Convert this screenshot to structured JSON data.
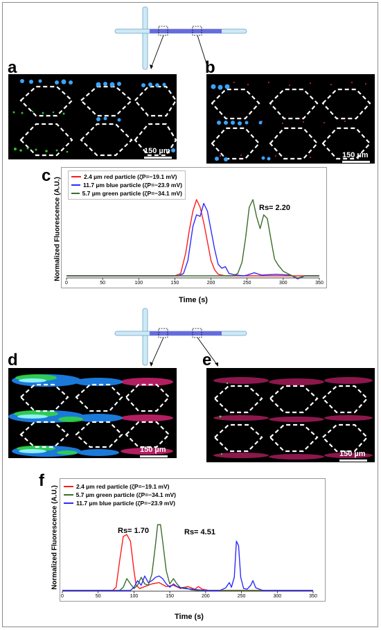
{
  "panels": {
    "a": "a",
    "b": "b",
    "c": "c",
    "d": "d",
    "e": "e",
    "f": "f"
  },
  "scale_bar_label": "150 µm",
  "colors": {
    "red": "#ff1a1a",
    "blue": "#2b2bff",
    "green": "#3c6b2a",
    "channel": "#6a6adf",
    "channel_light": "#bfe3f2"
  },
  "chart_data": [
    {
      "id": "c",
      "type": "line",
      "xlabel": "Time (s)",
      "ylabel": "Normalized Fluorescence (A.U.)",
      "xlim": [
        0,
        350
      ],
      "xticks": [
        "0",
        "50",
        "100",
        "150",
        "200",
        "250",
        "300",
        "350"
      ],
      "annotation": "Rs= 2.20",
      "series": [
        {
          "name": "2.4 µm red particle  (ζP=−19.1 mV)",
          "color": "#ff1a1a",
          "x": [
            0,
            150,
            158,
            165,
            170,
            175,
            180,
            185,
            190,
            195,
            200,
            205,
            210,
            220,
            250,
            350
          ],
          "y": [
            0,
            0,
            0.03,
            0.3,
            0.6,
            0.85,
            1.0,
            0.9,
            0.7,
            0.45,
            0.2,
            0.08,
            0.02,
            0,
            0,
            0
          ]
        },
        {
          "name": "11.7 µm blue particle  (ζP=−23.9 mV)",
          "color": "#2b2bff",
          "x": [
            0,
            155,
            162,
            168,
            175,
            180,
            185,
            190,
            195,
            200,
            205,
            210,
            215,
            220,
            225,
            235,
            245,
            250,
            260,
            270,
            290,
            310,
            320,
            330,
            350
          ],
          "y": [
            0,
            0,
            0.03,
            0.2,
            0.65,
            0.8,
            0.78,
            0.95,
            0.85,
            0.6,
            0.35,
            0.15,
            0.1,
            0.12,
            0.03,
            0.01,
            0,
            0.01,
            0.04,
            0.01,
            0.02,
            0.01,
            -0.04,
            0,
            0
          ]
        },
        {
          "name": "5.7 µm green particle  (ζP=−34.1 mV)",
          "color": "#3c6b2a",
          "x": [
            0,
            230,
            237,
            243,
            248,
            253,
            258,
            263,
            268,
            273,
            278,
            283,
            288,
            293,
            300,
            308,
            315,
            320,
            330,
            350
          ],
          "y": [
            0,
            0,
            0.03,
            0.18,
            0.5,
            0.9,
            1.0,
            0.78,
            0.62,
            0.8,
            0.75,
            0.48,
            0.22,
            0.14,
            0.06,
            0.02,
            -0.01,
            -0.03,
            0,
            0
          ]
        }
      ]
    },
    {
      "id": "f",
      "type": "line",
      "xlabel": "Time (s)",
      "ylabel": "Normalized Fluorescence (A.U.)",
      "xlim": [
        0,
        350
      ],
      "xticks": [
        "0",
        "50",
        "100",
        "150",
        "200",
        "250",
        "300",
        "350"
      ],
      "annotations": [
        "Rs= 1.70",
        "Rs= 4.51"
      ],
      "series": [
        {
          "name": "2.4 µm red particle  (ζP=−19.1 mV)",
          "color": "#ff1a1a",
          "x": [
            0,
            70,
            75,
            80,
            85,
            90,
            95,
            100,
            103,
            108,
            115,
            125,
            135,
            145,
            155,
            165,
            175,
            185,
            190,
            195,
            205,
            230,
            350
          ],
          "y": [
            0,
            0,
            0.05,
            0.45,
            0.82,
            0.85,
            0.75,
            0.3,
            0.08,
            0.03,
            0.06,
            0.1,
            0.12,
            0.06,
            0.08,
            0.03,
            0.06,
            0.02,
            0.06,
            0.02,
            0,
            0,
            0
          ]
        },
        {
          "name": "5.7 µm green particle  (ζP=−34.1 mV)",
          "color": "#3c6b2a",
          "x": [
            0,
            80,
            85,
            90,
            95,
            100,
            105,
            110,
            115,
            120,
            125,
            130,
            133,
            137,
            140,
            145,
            150,
            155,
            160,
            165,
            170,
            180,
            190,
            350
          ],
          "y": [
            0,
            0,
            0.05,
            0.18,
            0.1,
            0.03,
            0.08,
            0.2,
            0.1,
            0.08,
            0.25,
            0.7,
            1.0,
            1.0,
            0.75,
            0.3,
            0.1,
            0.18,
            0.1,
            0.04,
            0.05,
            0.01,
            0,
            0
          ]
        },
        {
          "name": "11.7 µm blue particle  (ζP=−23.9 mV)",
          "color": "#2b2bff",
          "x": [
            0,
            95,
            100,
            105,
            110,
            115,
            120,
            125,
            130,
            135,
            140,
            145,
            150,
            155,
            160,
            170,
            180,
            190,
            200,
            220,
            228,
            233,
            236,
            240,
            243,
            246,
            249,
            253,
            258,
            263,
            266,
            270,
            280,
            350
          ],
          "y": [
            0,
            0,
            0.05,
            0.15,
            0.08,
            0.22,
            0.12,
            0.15,
            0.2,
            0.22,
            0.18,
            0.1,
            0.05,
            0.1,
            0.06,
            0.03,
            0.02,
            0.01,
            0,
            0,
            0.04,
            0.12,
            0.05,
            0.2,
            0.75,
            0.68,
            0.2,
            0.03,
            0.02,
            0.08,
            0.15,
            0.04,
            0,
            0
          ]
        }
      ]
    }
  ]
}
